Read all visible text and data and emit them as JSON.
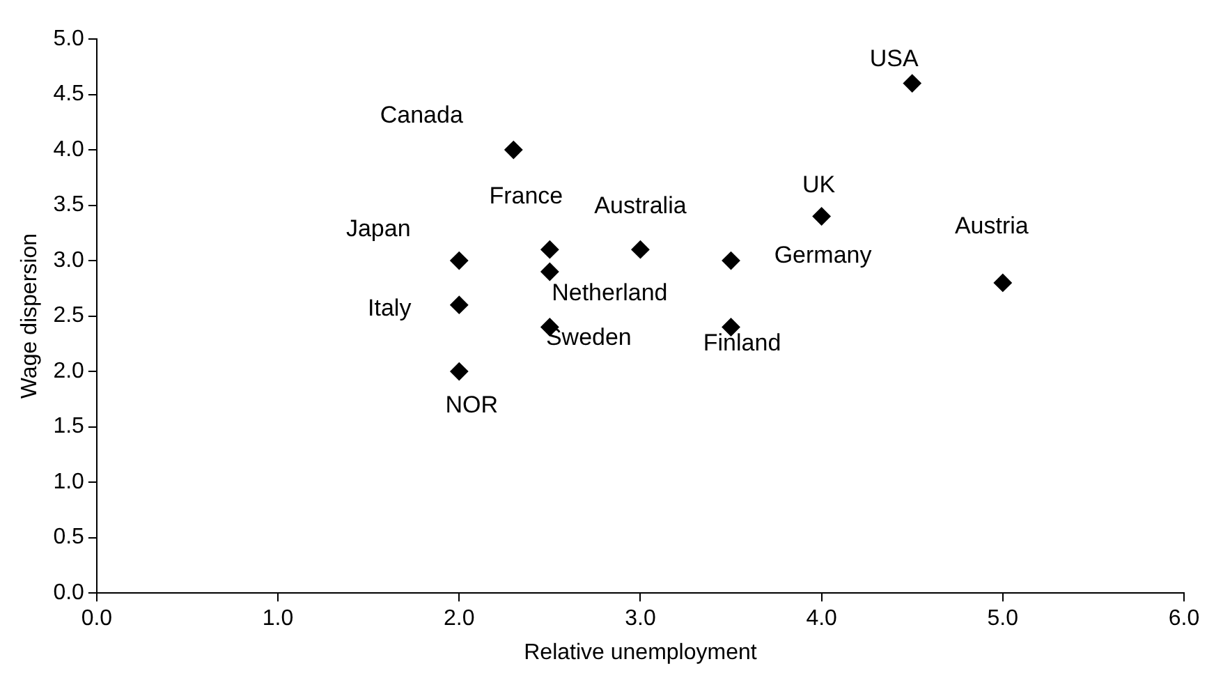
{
  "chart_data": {
    "type": "scatter",
    "xlabel": "Relative unemployment",
    "ylabel": "Wage dispersion",
    "x": [
      2.3,
      2.5,
      2.0,
      2.0,
      2.0,
      2.5,
      2.5,
      3.0,
      3.5,
      3.5,
      4.0,
      4.5,
      5.0
    ],
    "series": [
      {
        "color": "#000000",
        "values": [
          4.0,
          3.1,
          3.0,
          2.6,
          2.0,
          2.9,
          2.4,
          3.1,
          3.0,
          2.4,
          3.4,
          4.6,
          2.8
        ]
      }
    ],
    "marker": "diamond",
    "grid": false,
    "legend": false,
    "xlim": [
      0,
      6
    ],
    "xticks": [
      {
        "value": 0,
        "label": "0.0"
      },
      {
        "value": 1,
        "label": "1.0"
      },
      {
        "value": 2,
        "label": "2.0"
      },
      {
        "value": 3,
        "label": "3.0"
      },
      {
        "value": 4,
        "label": "4.0"
      },
      {
        "value": 5,
        "label": "5.0"
      },
      {
        "value": 6,
        "label": "6.0"
      }
    ],
    "ylim": [
      0,
      5
    ],
    "yticks": [
      {
        "value": 0,
        "label": "0.0"
      },
      {
        "value": 0.5,
        "label": "0.5"
      },
      {
        "value": 1,
        "label": "1.0"
      },
      {
        "value": 1.5,
        "label": "1.5"
      },
      {
        "value": 2,
        "label": "2.0"
      },
      {
        "value": 2.5,
        "label": "2.5"
      },
      {
        "value": 3,
        "label": "3.0"
      },
      {
        "value": 3.5,
        "label": "3.5"
      },
      {
        "value": 4,
        "label": "4.0"
      },
      {
        "value": 4.5,
        "label": "4.5"
      },
      {
        "value": 5,
        "label": "5.0"
      }
    ],
    "annotations": [
      {
        "text": "Canada",
        "x": 2.3,
        "y": 4.0
      },
      {
        "text": "France",
        "x": 2.5,
        "y": 3.1
      },
      {
        "text": "Japan",
        "x": 2.0,
        "y": 3.0
      },
      {
        "text": "Italy",
        "x": 2.0,
        "y": 2.6
      },
      {
        "text": "NOR",
        "x": 2.0,
        "y": 2.0
      },
      {
        "text": "Netherland",
        "x": 2.5,
        "y": 2.9
      },
      {
        "text": "Sweden",
        "x": 2.5,
        "y": 2.4
      },
      {
        "text": "Australia",
        "x": 3.0,
        "y": 3.1
      },
      {
        "text": "Germany",
        "x": 3.5,
        "y": 3.0
      },
      {
        "text": "Finland",
        "x": 3.5,
        "y": 2.4
      },
      {
        "text": "UK",
        "x": 4.0,
        "y": 3.4
      },
      {
        "text": "USA",
        "x": 4.5,
        "y": 4.6
      },
      {
        "text": "Austria",
        "x": 5.0,
        "y": 2.8
      }
    ]
  }
}
